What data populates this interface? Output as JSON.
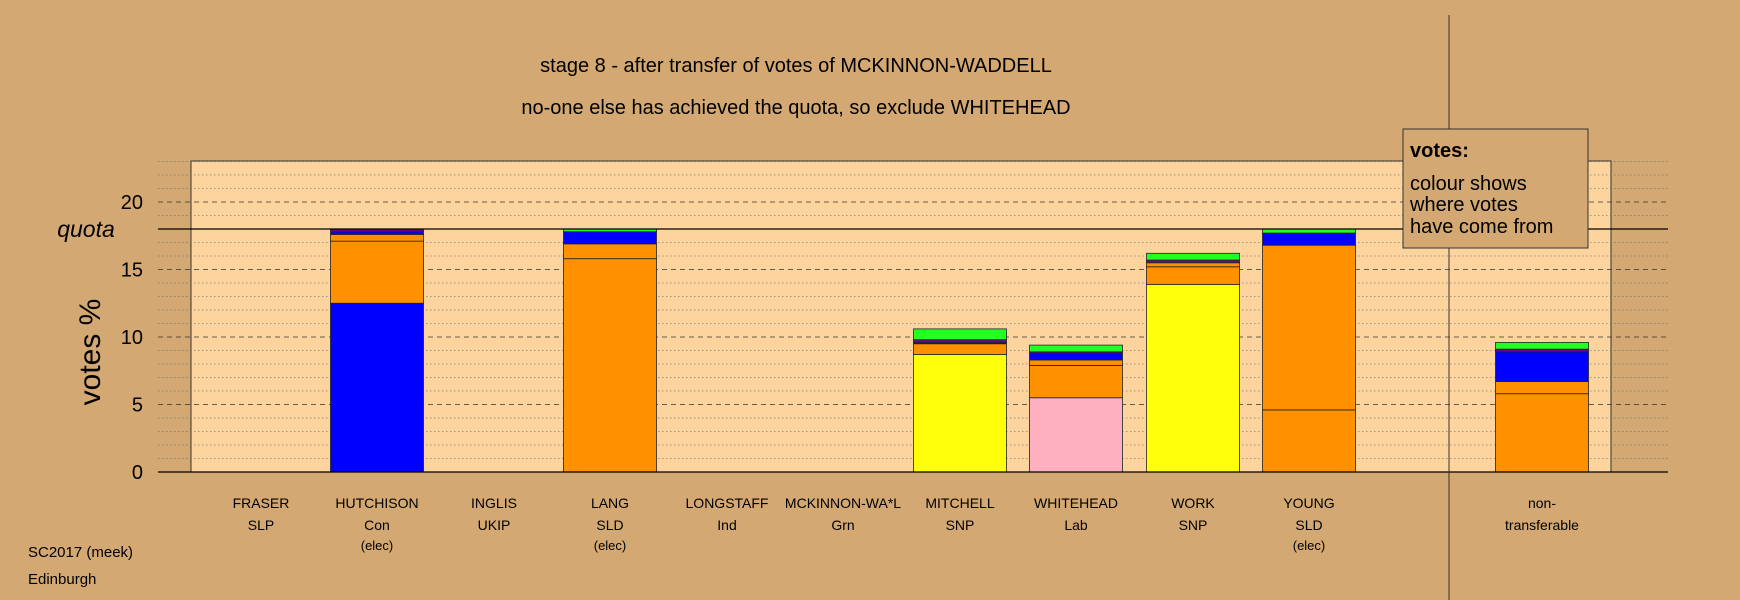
{
  "chart_data": {
    "type": "bar",
    "title": "stage 8 - after transfer of votes of MCKINNON-WADDELL",
    "subtitle": "no-one else has achieved the quota, so exclude WHITEHEAD",
    "ylabel": "votes %",
    "ylim": [
      0,
      23
    ],
    "yticks": [
      0,
      5,
      10,
      15,
      20
    ],
    "quota": 18,
    "quota_label": "quota",
    "grid": true,
    "legend": {
      "title": "votes:",
      "lines": [
        "colour shows",
        "where votes",
        "have come from"
      ],
      "position": "top-right"
    },
    "colors": {
      "background": "#d4a872",
      "plot": "#fdd49e",
      "Con": "#0000ff",
      "SLD": "#ff9000",
      "SNP": "#ffff0c",
      "Lab": "#ffb0c0",
      "Grn": "#22ff22",
      "UKIP": "#6a0a8a",
      "SLP": "#d21010"
    },
    "candidates": [
      {
        "name": "FRASER",
        "party": "SLP",
        "status": "",
        "segments": []
      },
      {
        "name": "HUTCHISON",
        "party": "Con",
        "status": "(elec)",
        "segments": [
          {
            "from": "Con",
            "value": 12.5
          },
          {
            "from": "SLD",
            "value": 4.6
          },
          {
            "from": "SLD",
            "value": 0.5
          },
          {
            "from": "Con",
            "value": 0.2
          },
          {
            "from": "UKIP",
            "value": 0.2
          }
        ]
      },
      {
        "name": "INGLIS",
        "party": "UKIP",
        "status": "",
        "segments": []
      },
      {
        "name": "LANG",
        "party": "SLD",
        "status": "(elec)",
        "segments": [
          {
            "from": "SLD",
            "value": 15.8
          },
          {
            "from": "SLD",
            "value": 1.1
          },
          {
            "from": "Con",
            "value": 0.9
          },
          {
            "from": "Grn",
            "value": 0.2
          }
        ]
      },
      {
        "name": "LONGSTAFF",
        "party": "Ind",
        "status": "",
        "segments": []
      },
      {
        "name": "MCKINNON-WA*L",
        "party": "Grn",
        "status": "",
        "segments": []
      },
      {
        "name": "MITCHELL",
        "party": "SNP",
        "status": "",
        "segments": [
          {
            "from": "SNP",
            "value": 8.7
          },
          {
            "from": "SLD",
            "value": 0.8
          },
          {
            "from": "Con",
            "value": 0.1
          },
          {
            "from": "UKIP",
            "value": 0.2
          },
          {
            "from": "Grn",
            "value": 0.8
          }
        ]
      },
      {
        "name": "WHITEHEAD",
        "party": "Lab",
        "status": "",
        "segments": [
          {
            "from": "Lab",
            "value": 5.5
          },
          {
            "from": "SLD",
            "value": 2.4
          },
          {
            "from": "SLD",
            "value": 0.4
          },
          {
            "from": "Con",
            "value": 0.5
          },
          {
            "from": "UKIP",
            "value": 0.1
          },
          {
            "from": "Grn",
            "value": 0.5
          }
        ]
      },
      {
        "name": "WORK",
        "party": "SNP",
        "status": "",
        "segments": [
          {
            "from": "SNP",
            "value": 13.9
          },
          {
            "from": "SLD",
            "value": 1.3
          },
          {
            "from": "SLD",
            "value": 0.3
          },
          {
            "from": "UKIP",
            "value": 0.2
          },
          {
            "from": "Grn",
            "value": 0.5
          }
        ]
      },
      {
        "name": "YOUNG",
        "party": "SLD",
        "status": "(elec)",
        "segments": [
          {
            "from": "SLD",
            "value": 4.6
          },
          {
            "from": "SLD",
            "value": 12.2
          },
          {
            "from": "Con",
            "value": 0.9
          },
          {
            "from": "Grn",
            "value": 0.3
          }
        ]
      },
      {
        "name": "non-",
        "party": "transferable",
        "status": "",
        "segments": [
          {
            "from": "SLD",
            "value": 5.8
          },
          {
            "from": "SLD",
            "value": 0.9
          },
          {
            "from": "Con",
            "value": 2.2
          },
          {
            "from": "UKIP",
            "value": 0.2
          },
          {
            "from": "Grn",
            "value": 0.5
          }
        ]
      }
    ]
  },
  "footer": {
    "line1": "SC2017 (meek)",
    "line2": "Edinburgh"
  }
}
